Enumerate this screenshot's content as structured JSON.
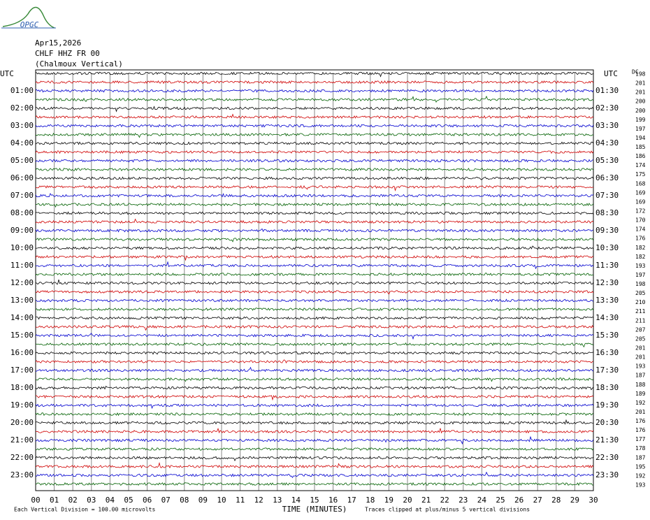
{
  "logo": "OPGC",
  "header": {
    "date": "Apr15,2026",
    "station": "CHLF HHZ FR 00",
    "location": "(Chalmoux Vertical)"
  },
  "left_axis": {
    "title": "UTC",
    "labels": [
      "01:00",
      "02:00",
      "03:00",
      "04:00",
      "05:00",
      "06:00",
      "07:00",
      "08:00",
      "09:00",
      "10:00",
      "11:00",
      "12:00",
      "13:00",
      "14:00",
      "15:00",
      "16:00",
      "17:00",
      "18:00",
      "19:00",
      "20:00",
      "21:00",
      "22:00",
      "23:00"
    ]
  },
  "right_axis": {
    "title": "UTC",
    "labels": [
      "01:30",
      "02:30",
      "03:30",
      "04:30",
      "05:30",
      "06:30",
      "07:30",
      "08:30",
      "09:30",
      "10:30",
      "11:30",
      "12:30",
      "13:30",
      "14:30",
      "15:30",
      "16:30",
      "17:30",
      "18:30",
      "19:30",
      "20:30",
      "21:30",
      "22:30",
      "23:30"
    ]
  },
  "dc": {
    "title": "DC",
    "values": [
      198,
      201,
      201,
      200,
      200,
      199,
      197,
      194,
      185,
      186,
      174,
      175,
      168,
      169,
      169,
      172,
      170,
      174,
      176,
      182,
      182,
      193,
      197,
      198,
      205,
      210,
      211,
      211,
      207,
      205,
      201,
      201,
      193,
      187,
      188,
      189,
      192,
      201,
      176,
      176,
      177,
      178,
      187,
      195,
      192,
      193
    ]
  },
  "x_axis": {
    "title": "TIME (MINUTES)",
    "ticks": [
      "00",
      "01",
      "02",
      "03",
      "04",
      "05",
      "06",
      "07",
      "08",
      "09",
      "10",
      "11",
      "12",
      "13",
      "14",
      "15",
      "16",
      "17",
      "18",
      "19",
      "20",
      "21",
      "22",
      "23",
      "24",
      "25",
      "26",
      "27",
      "28",
      "29",
      "30"
    ]
  },
  "footer": {
    "scale": "Each Vertical Division =  100.00 microvolts",
    "clip": "Traces clipped at plus/minus 5 vertical divisions"
  }
}
